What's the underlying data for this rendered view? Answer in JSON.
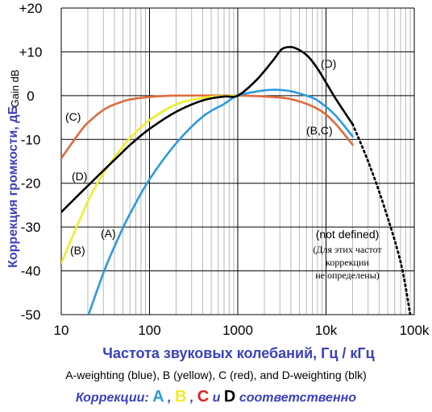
{
  "chart_data": {
    "type": "line",
    "x_scale": "log",
    "xlim": [
      10,
      100000
    ],
    "ylim": [
      -50,
      20
    ],
    "x_ticks": [
      {
        "value": 10,
        "label": "10"
      },
      {
        "value": 100,
        "label": "100"
      },
      {
        "value": 1000,
        "label": "1000"
      },
      {
        "value": 10000,
        "label": "10k"
      },
      {
        "value": 100000,
        "label": "100k"
      }
    ],
    "y_ticks": [
      {
        "value": 20,
        "label": "+20"
      },
      {
        "value": 10,
        "label": "+10"
      },
      {
        "value": 0,
        "label": "0"
      },
      {
        "value": -10,
        "label": "-10"
      },
      {
        "value": -20,
        "label": "-20"
      },
      {
        "value": -30,
        "label": "-30"
      },
      {
        "value": -40,
        "label": "-40"
      },
      {
        "value": -50,
        "label": "-50"
      }
    ],
    "grid": true,
    "ylabel": "Коррекция громкости, дБ",
    "ylabel_en": "Gain dB",
    "xlabel": "Частота звуковых колебаний, Гц / кГц",
    "series": [
      {
        "name": "(A)",
        "color": "#2a9be0",
        "x": [
          20,
          31.5,
          50,
          63,
          100,
          200,
          400,
          700,
          1000,
          2000,
          3000,
          4000,
          6000,
          8000,
          12500,
          20000
        ],
        "y": [
          -50.5,
          -39.4,
          -30.2,
          -26.2,
          -19.1,
          -10.9,
          -4.8,
          -1.9,
          0,
          1.2,
          1.3,
          1.0,
          0.0,
          -1.1,
          -4.3,
          -9.3
        ]
      },
      {
        "name": "(B)",
        "color": "#eeee2a",
        "x": [
          10,
          20,
          31.5,
          50,
          63,
          100,
          200,
          400,
          700,
          1000
        ],
        "y": [
          -38.2,
          -24.2,
          -17.1,
          -11.6,
          -9.3,
          -5.6,
          -2.0,
          -0.5,
          -0.1,
          0
        ]
      },
      {
        "name": "(C)",
        "color": "#e06a3a",
        "x": [
          10,
          16,
          20,
          31.5,
          50,
          63,
          100,
          200,
          1000,
          2000,
          4000,
          8000,
          12500,
          20000
        ],
        "y": [
          -14.3,
          -8.5,
          -6.2,
          -3.0,
          -1.3,
          -0.8,
          -0.3,
          0,
          0,
          -0.2,
          -0.8,
          -3.0,
          -6.2,
          -11.2
        ]
      },
      {
        "name": "(D)",
        "color": "#000000",
        "x": [
          10,
          16,
          20,
          31.5,
          50,
          63,
          100,
          200,
          400,
          700,
          1000,
          1600,
          2500,
          3150,
          4000,
          5000,
          6300,
          8000,
          10000,
          12500,
          16000,
          20000
        ],
        "y": [
          -26.6,
          -22.5,
          -20.6,
          -16.7,
          -12.8,
          -10.9,
          -7.6,
          -3.7,
          -1.1,
          -0.2,
          0,
          3.4,
          8.0,
          10.6,
          11.1,
          10.4,
          8.9,
          6.2,
          3.0,
          -0.3,
          -3.6,
          -6.5
        ],
        "dotted_extension": {
          "x": [
            20000,
            30000,
            45000,
            70000,
            90000
          ],
          "y": [
            -6.5,
            -15,
            -25,
            -38,
            -50
          ]
        }
      }
    ],
    "annotations": {
      "A": "(A)",
      "B": "(B)",
      "C": "(C)",
      "D_low": "(D)",
      "D_high": "(D)",
      "BC": "(B,C)",
      "not_defined": "(not defined)",
      "note_ru_1": "(Для этих частот",
      "note_ru_2": "коррекции",
      "note_ru_3": "не определены)"
    },
    "legend_en": "A-weighting (blue), B (yellow), C (red), and D-weighting (blk)",
    "legend_ru": {
      "prefix": "Коррекции:",
      "A": "A",
      "sep1": ",",
      "B": "B",
      "sep2": ",",
      "C": "C",
      "and": "и",
      "D": "D",
      "suffix": "соответственно",
      "colors": {
        "prefix": "#3b3fbf",
        "A": "#2a9be0",
        "B": "#eeee2a",
        "C": "#e02020",
        "D": "#000000"
      }
    }
  }
}
